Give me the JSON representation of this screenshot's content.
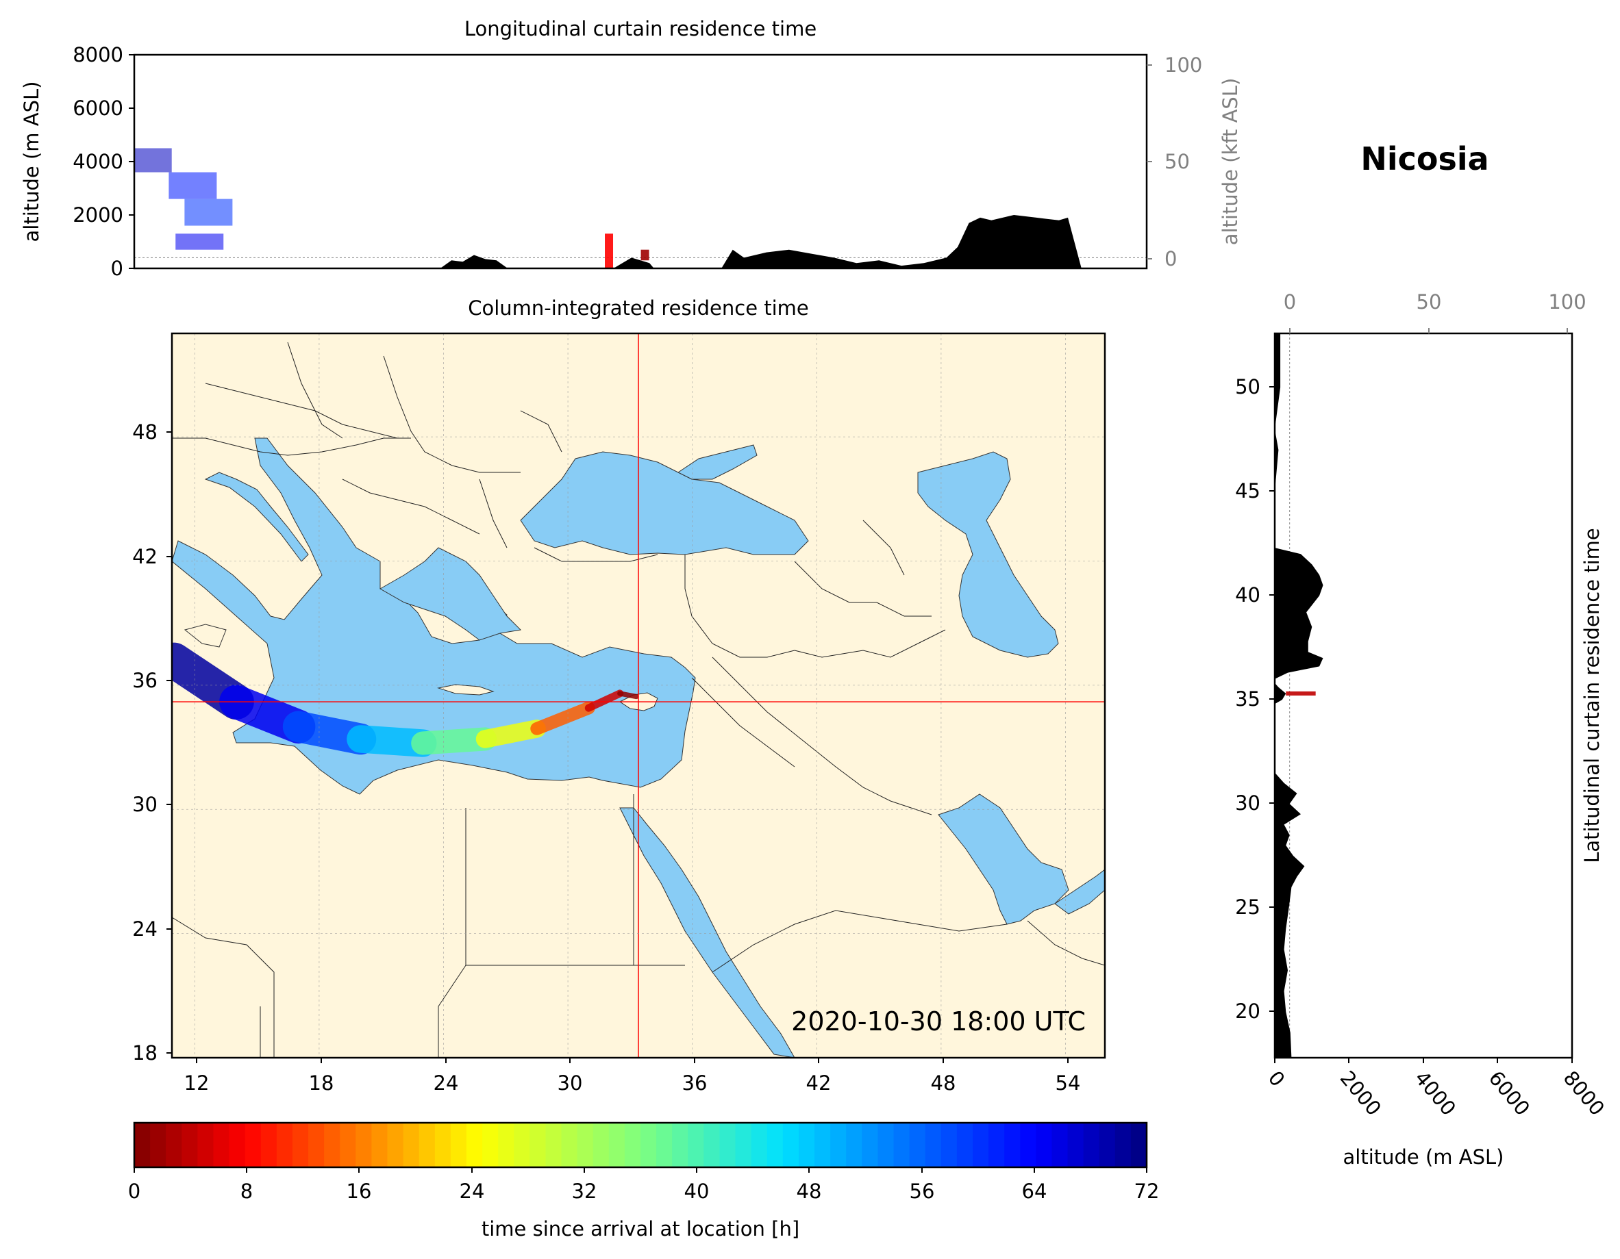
{
  "location": "Nicosia",
  "timestamp": "2020-10-30 18:00 UTC",
  "colors": {
    "land": "#fff6dc",
    "sea": "#88ccf5",
    "border": "#222222",
    "crosshair": "#ff0000",
    "terrain": "#000000",
    "secondary_axis": "#808080"
  },
  "chart_data": [
    {
      "id": "longitudinal",
      "type": "area",
      "title": "Longitudinal curtain residence time",
      "ylabel": "altitude (m ASL)",
      "ylabel_right": "altitude (kft ASL)",
      "ylim": [
        0,
        8000
      ],
      "y_ticks": [
        "0",
        "2000",
        "4000",
        "6000",
        "8000"
      ],
      "y_ticks_right": [
        "0",
        "50",
        "100"
      ],
      "terrain_x_lon": [
        10.9,
        24.5,
        25,
        25.5,
        26,
        26.5,
        27,
        27.5,
        28,
        32.2,
        33,
        33.8,
        34,
        37,
        37.5,
        38,
        39,
        40,
        41,
        42,
        43,
        44,
        45,
        46,
        47,
        47.5,
        48,
        48.5,
        49,
        50,
        51,
        52,
        52.4,
        53,
        55.4
      ],
      "terrain_alt_m": [
        0,
        0,
        300,
        250,
        500,
        350,
        300,
        0,
        0,
        0,
        400,
        200,
        0,
        0,
        700,
        400,
        600,
        700,
        550,
        400,
        200,
        300,
        100,
        200,
        400,
        800,
        1700,
        1900,
        1800,
        2000,
        1900,
        1800,
        1900,
        0,
        0
      ],
      "particles": [
        {
          "lon": 11.5,
          "alt_min": 3600,
          "alt_max": 4500,
          "age_h": 68
        },
        {
          "lon": 13.5,
          "alt_min": 2600,
          "alt_max": 3600,
          "age_h": 62
        },
        {
          "lon": 14.2,
          "alt_min": 1600,
          "alt_max": 2600,
          "age_h": 60
        },
        {
          "lon": 13.8,
          "alt_min": 700,
          "alt_max": 1300,
          "age_h": 65
        },
        {
          "lon": 32.0,
          "alt_min": 0,
          "alt_max": 1300,
          "age_h": 8
        },
        {
          "lon": 33.6,
          "alt_min": 300,
          "alt_max": 700,
          "age_h": 2
        }
      ]
    },
    {
      "id": "map",
      "type": "heatmap",
      "title": "Column-integrated residence time",
      "xlim": [
        10.9,
        55.9
      ],
      "ylim": [
        18,
        53
      ],
      "x_ticks": [
        "12",
        "18",
        "24",
        "30",
        "36",
        "42",
        "48",
        "54"
      ],
      "y_ticks": [
        "18",
        "24",
        "30",
        "36",
        "42",
        "48"
      ],
      "crosshair": {
        "lon": 33.4,
        "lat": 35.2
      },
      "plume": [
        {
          "lon": 33.3,
          "lat": 35.45,
          "age_h": 0
        },
        {
          "lon": 32.5,
          "lat": 35.6,
          "age_h": 2
        },
        {
          "lon": 31.0,
          "lat": 34.9,
          "age_h": 8
        },
        {
          "lon": 28.5,
          "lat": 33.9,
          "age_h": 20
        },
        {
          "lon": 26.0,
          "lat": 33.4,
          "age_h": 32
        },
        {
          "lon": 23.0,
          "lat": 33.2,
          "age_h": 44
        },
        {
          "lon": 20.0,
          "lat": 33.4,
          "age_h": 54
        },
        {
          "lon": 17.0,
          "lat": 34.0,
          "age_h": 62
        },
        {
          "lon": 14.0,
          "lat": 35.2,
          "age_h": 68
        },
        {
          "lon": 11.0,
          "lat": 37.2,
          "age_h": 72
        }
      ]
    },
    {
      "id": "latitudinal",
      "type": "area",
      "title": "Latitudinal curtain residence time",
      "xlabel": "altitude (m ASL)",
      "xlim": [
        0,
        8000
      ],
      "x_ticks": [
        "0",
        "2000",
        "4000",
        "6000",
        "8000"
      ],
      "x_ticks_top": [
        "0",
        "50",
        "100"
      ],
      "ylim": [
        17.8,
        52.6
      ],
      "y_ticks": [
        "20",
        "25",
        "30",
        "35",
        "40",
        "45",
        "50"
      ],
      "terrain_lat": [
        17.8,
        19,
        20,
        21,
        22,
        23,
        24,
        25,
        26,
        26.5,
        27,
        27.5,
        28,
        28.5,
        29,
        29.5,
        30,
        30.5,
        31,
        31.5,
        34.8,
        35,
        35.3,
        35.6,
        35.8,
        36,
        36.3,
        36.6,
        37,
        37.3,
        37.8,
        38.5,
        39.2,
        40,
        40.5,
        41,
        41.5,
        42,
        42.3,
        45,
        47,
        48,
        50,
        52.6
      ],
      "terrain_alt_m": [
        450,
        420,
        300,
        250,
        350,
        250,
        300,
        380,
        450,
        600,
        800,
        500,
        300,
        400,
        250,
        700,
        400,
        600,
        250,
        0,
        0,
        200,
        300,
        100,
        0,
        0,
        350,
        1200,
        1300,
        900,
        900,
        1000,
        850,
        1200,
        1300,
        1200,
        1000,
        700,
        0,
        0,
        100,
        0,
        150,
        150
      ],
      "particles": [
        {
          "lat": 35.3,
          "alt_min": 300,
          "alt_max": 1100,
          "age_h": 4
        }
      ]
    },
    {
      "id": "colorbar",
      "type": "heatmap",
      "label": "time since arrival at location [h]",
      "range": [
        0,
        72
      ],
      "ticks": [
        "0",
        "8",
        "16",
        "24",
        "32",
        "40",
        "48",
        "56",
        "64",
        "72"
      ]
    }
  ]
}
